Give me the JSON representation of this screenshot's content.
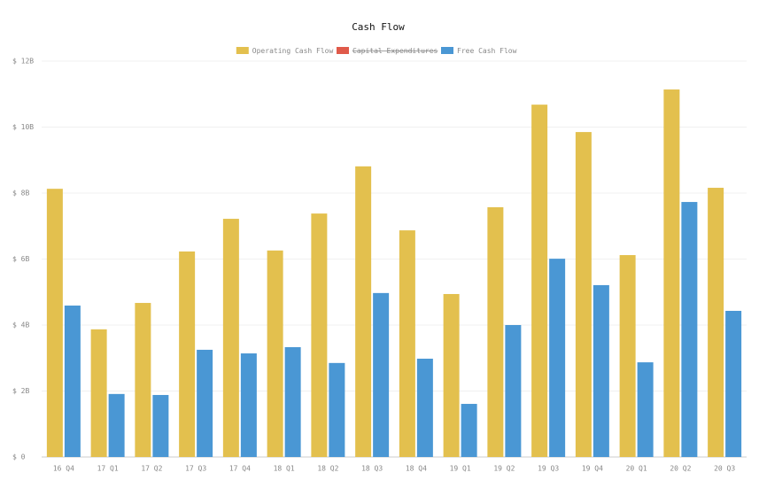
{
  "chart_data": {
    "type": "bar",
    "title": "Cash Flow",
    "categories": [
      "16 Q4",
      "17 Q1",
      "17 Q2",
      "17 Q3",
      "17 Q4",
      "18 Q1",
      "18 Q2",
      "18 Q3",
      "18 Q4",
      "19 Q1",
      "19 Q2",
      "19 Q3",
      "19 Q4",
      "20 Q1",
      "20 Q2",
      "20 Q3"
    ],
    "series": [
      {
        "name": "Operating Cash Flow",
        "color": "#e3c04e",
        "values": [
          8.13,
          3.87,
          4.67,
          6.23,
          7.22,
          6.26,
          7.38,
          8.81,
          6.87,
          4.94,
          7.57,
          10.68,
          9.85,
          6.12,
          11.14,
          8.16
        ]
      },
      {
        "name": "Capital Expenditures",
        "color": "#e05a4a",
        "hidden": true,
        "values": [
          null,
          null,
          null,
          null,
          null,
          null,
          null,
          null,
          null,
          null,
          null,
          null,
          null,
          null,
          null,
          null
        ]
      },
      {
        "name": "Free Cash Flow",
        "color": "#4a97d4",
        "values": [
          4.59,
          1.91,
          1.88,
          3.25,
          3.14,
          3.33,
          2.85,
          4.97,
          2.98,
          1.61,
          4.0,
          6.01,
          5.21,
          2.87,
          7.73,
          4.43
        ]
      }
    ],
    "ylim": [
      0,
      12
    ],
    "yticks": [
      {
        "value": 0,
        "label": "$ 0"
      },
      {
        "value": 2,
        "label": "$ 2B"
      },
      {
        "value": 4,
        "label": "$ 4B"
      },
      {
        "value": 6,
        "label": "$ 6B"
      },
      {
        "value": 8,
        "label": "$ 8B"
      },
      {
        "value": 10,
        "label": "$ 10B"
      },
      {
        "value": 12,
        "label": "$ 12B"
      }
    ],
    "grid": true,
    "legend": "top"
  }
}
